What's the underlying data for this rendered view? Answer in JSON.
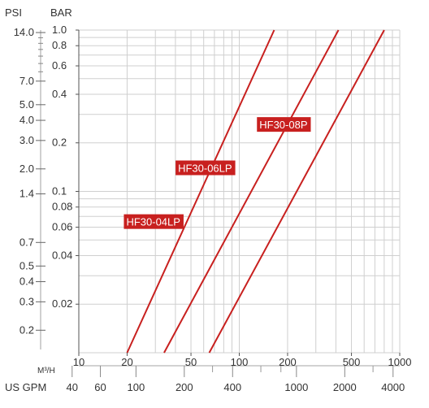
{
  "chart_data": {
    "type": "line",
    "x_scale": "log",
    "y_scale": "log",
    "grid": true,
    "axes": {
      "psi_title": "PSI",
      "bar_title": "BAR",
      "m3h_title": "M³/H",
      "gpm_title": "US GPM",
      "bar_range": [
        0.01,
        1.0
      ],
      "m3h_range": [
        10,
        1000
      ]
    },
    "psi_ticks": [
      {
        "label": "14.0",
        "value": 14.0
      },
      {
        "label": "7.0",
        "value": 7.0
      },
      {
        "label": "5.0",
        "value": 5.0
      },
      {
        "label": "4.0",
        "value": 4.0
      },
      {
        "label": "3.0",
        "value": 3.0
      },
      {
        "label": "2.0",
        "value": 2.0
      },
      {
        "label": "1.4",
        "value": 1.4
      },
      {
        "label": "0.7",
        "value": 0.7
      },
      {
        "label": "0.5",
        "value": 0.5
      },
      {
        "label": "0.4",
        "value": 0.4
      },
      {
        "label": "0.3",
        "value": 0.3
      },
      {
        "label": "0.2",
        "value": 0.2
      }
    ],
    "bar_ticks": [
      {
        "label": "1.0",
        "value": 1.0
      },
      {
        "label": "0.8",
        "value": 0.8
      },
      {
        "label": "0.6",
        "value": 0.6
      },
      {
        "label": "0.4",
        "value": 0.4
      },
      {
        "label": "0.2",
        "value": 0.2
      },
      {
        "label": "0.1",
        "value": 0.1
      },
      {
        "label": "0.08",
        "value": 0.08
      },
      {
        "label": "0.06",
        "value": 0.06
      },
      {
        "label": "0.04",
        "value": 0.04
      },
      {
        "label": "0.02",
        "value": 0.02
      }
    ],
    "m3h_ticks": [
      {
        "label": "10",
        "value": 10
      },
      {
        "label": "20",
        "value": 20
      },
      {
        "label": "50",
        "value": 50
      },
      {
        "label": "100",
        "value": 100
      },
      {
        "label": "200",
        "value": 200
      },
      {
        "label": "500",
        "value": 500
      },
      {
        "label": "1000",
        "value": 1000
      }
    ],
    "gpm_ticks": [
      {
        "label": "40",
        "value": 40
      },
      {
        "label": "60",
        "value": 60
      },
      {
        "label": "100",
        "value": 100
      },
      {
        "label": "200",
        "value": 200
      },
      {
        "label": "400",
        "value": 400
      },
      {
        "label": "1000",
        "value": 1000
      },
      {
        "label": "2000",
        "value": 2000
      },
      {
        "label": "4000",
        "value": 4000
      }
    ],
    "series": [
      {
        "name": "HF30-04LP",
        "color": "#c8201f",
        "label_anchor": [
          20,
          0.065
        ],
        "points": [
          [
            20,
            0.01
          ],
          [
            165,
            1.0
          ]
        ]
      },
      {
        "name": "HF30-06LP",
        "color": "#c8201f",
        "label_anchor": [
          42,
          0.14
        ],
        "points": [
          [
            34,
            0.01
          ],
          [
            415,
            1.0
          ]
        ]
      },
      {
        "name": "HF30-08P",
        "color": "#c8201f",
        "label_anchor": [
          135,
          0.26
        ],
        "points": [
          [
            65,
            0.01
          ],
          [
            800,
            1.0
          ]
        ]
      }
    ]
  }
}
